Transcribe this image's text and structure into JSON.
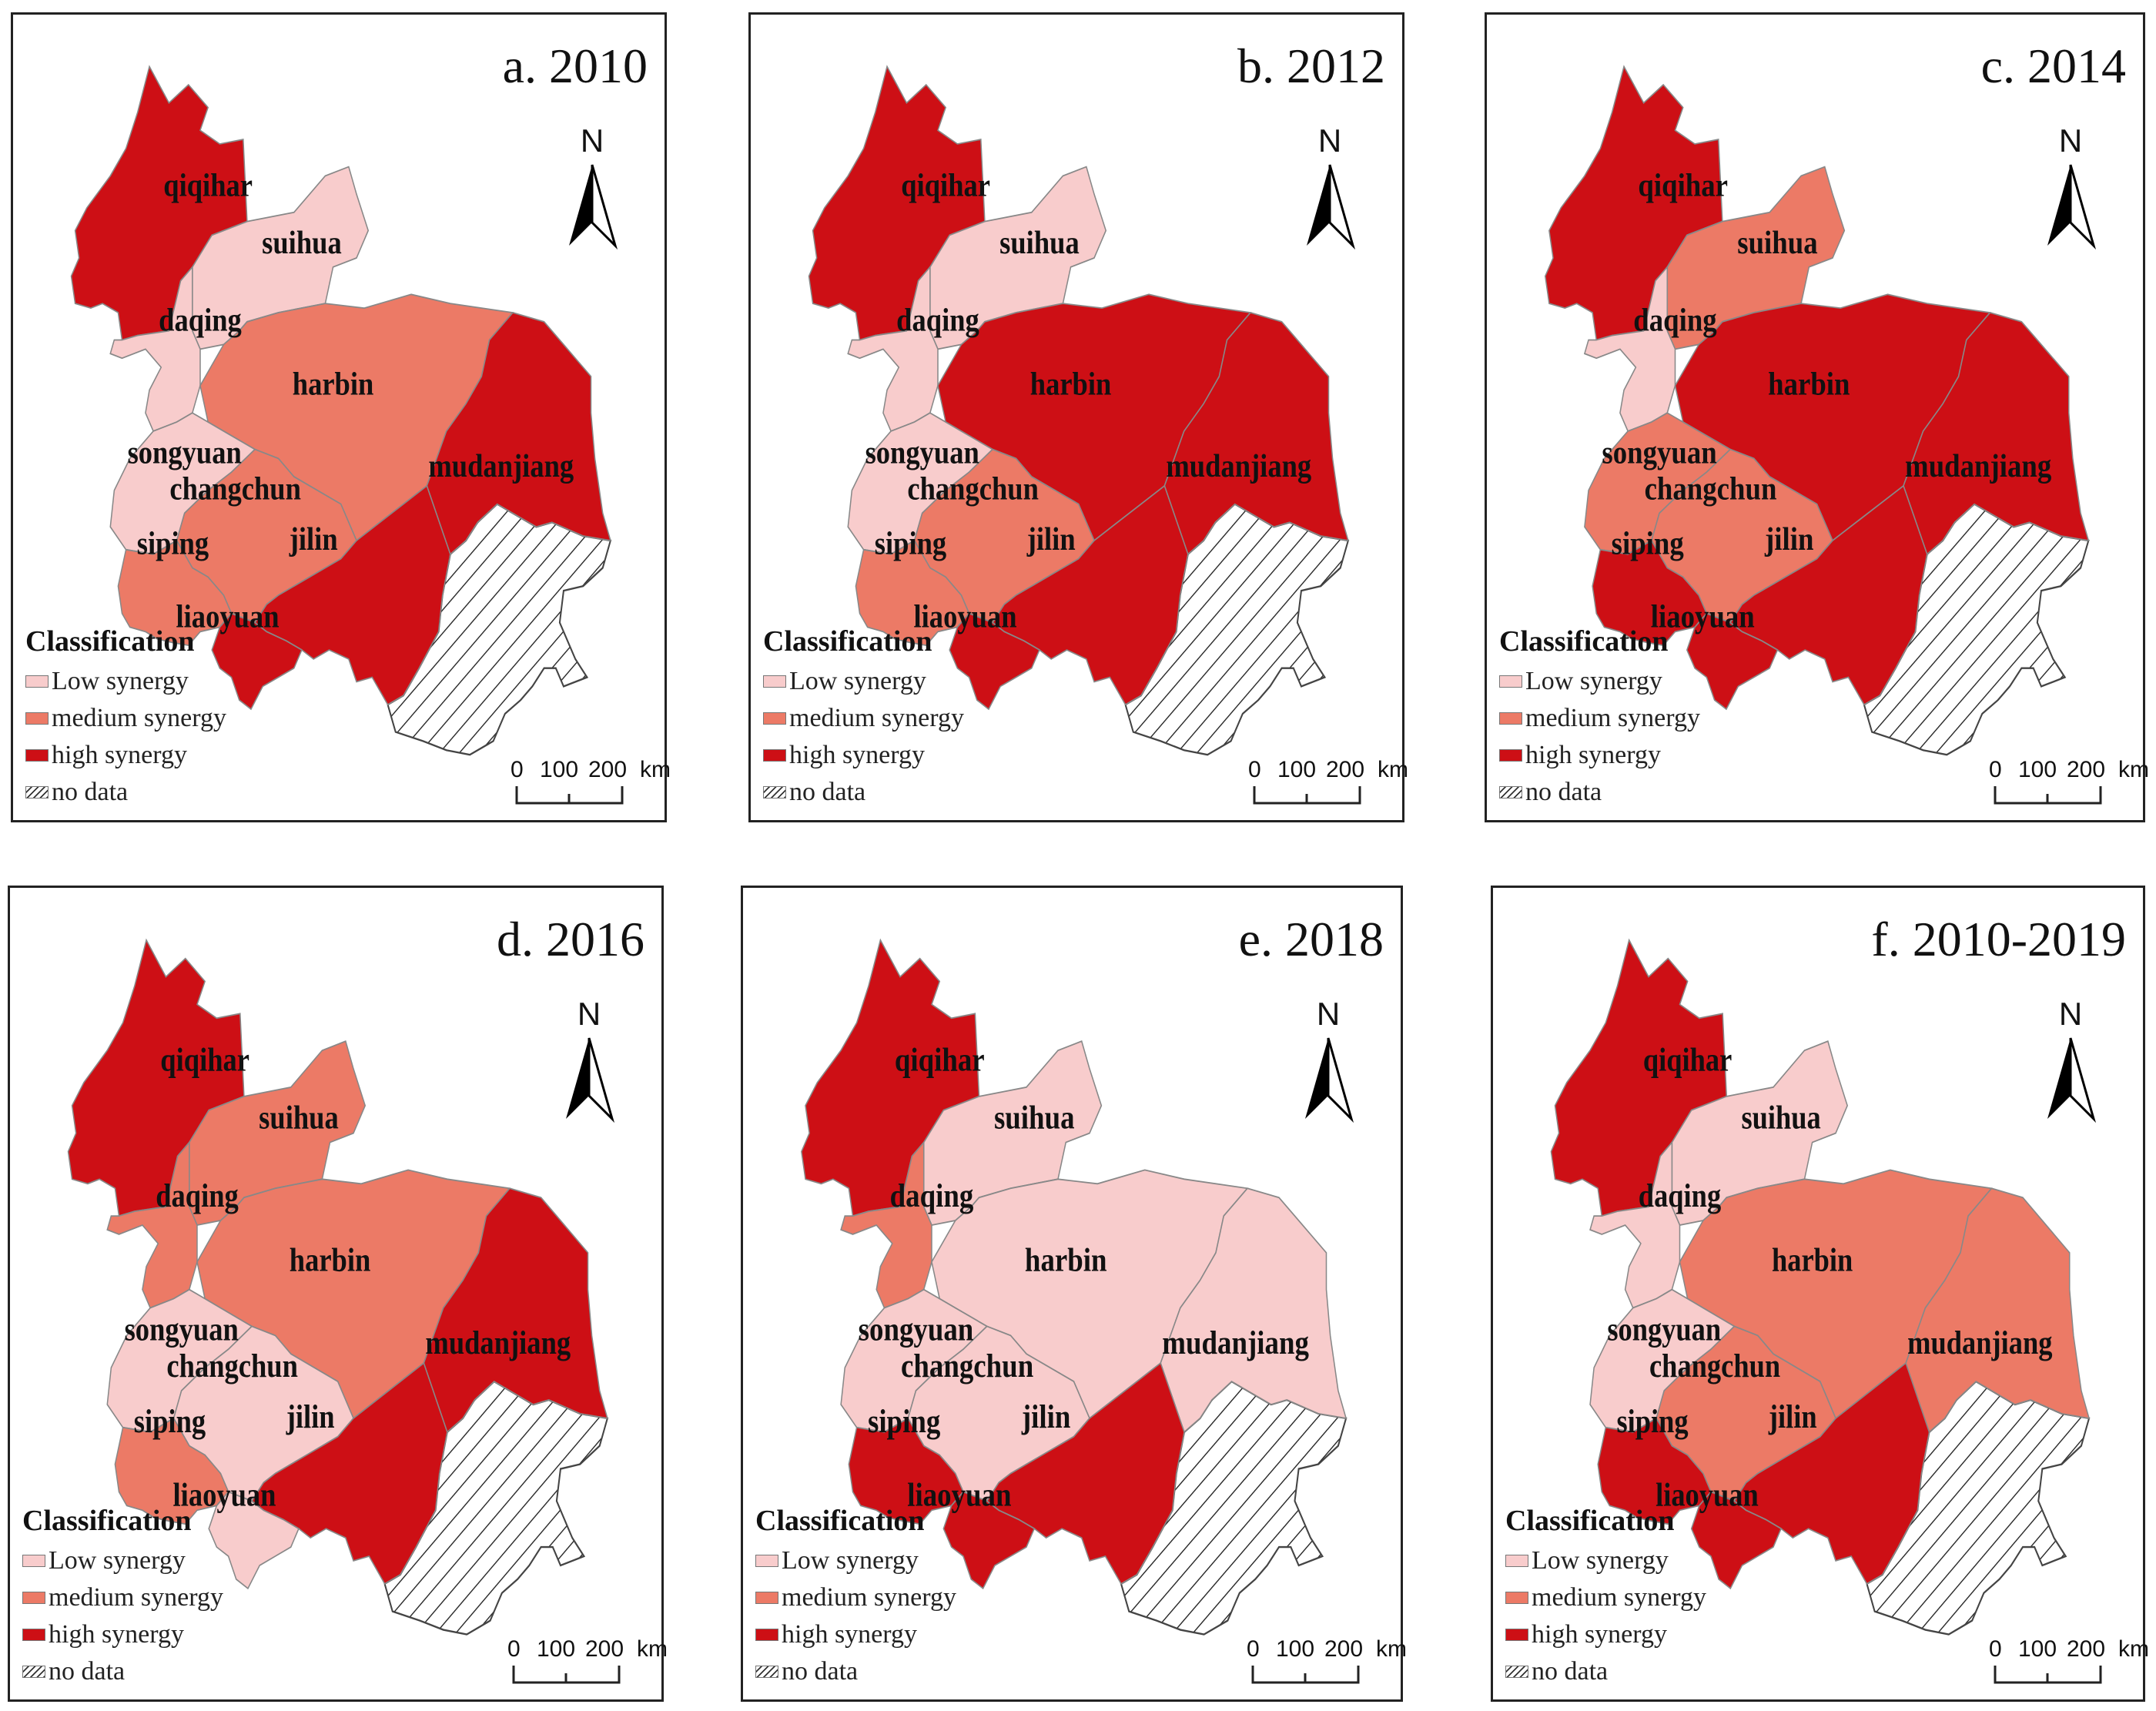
{
  "colors": {
    "low": "#f8cccc",
    "medium": "#ec7a66",
    "high": "#cd0f15",
    "no_data": "hatch",
    "boundary": "#888888"
  },
  "panels": [
    {
      "title": "a. 2010",
      "classes": {
        "qiqihar": "high",
        "suihua": "low",
        "daqing": "low",
        "harbin": "medium",
        "songyuan": "low",
        "changchun": "medium",
        "mudanjiang": "high",
        "siping": "medium",
        "jilin": "high",
        "liaoyuan": "high"
      }
    },
    {
      "title": "b. 2012",
      "classes": {
        "qiqihar": "high",
        "suihua": "low",
        "daqing": "low",
        "harbin": "high",
        "songyuan": "low",
        "changchun": "medium",
        "mudanjiang": "high",
        "siping": "medium",
        "jilin": "high",
        "liaoyuan": "high"
      }
    },
    {
      "title": "c. 2014",
      "classes": {
        "qiqihar": "high",
        "suihua": "medium",
        "daqing": "low",
        "harbin": "high",
        "songyuan": "medium",
        "changchun": "medium",
        "mudanjiang": "high",
        "siping": "high",
        "jilin": "high",
        "liaoyuan": "high"
      }
    },
    {
      "title": "d. 2016",
      "classes": {
        "qiqihar": "high",
        "suihua": "medium",
        "daqing": "medium",
        "harbin": "medium",
        "songyuan": "low",
        "changchun": "low",
        "mudanjiang": "high",
        "siping": "medium",
        "jilin": "high",
        "liaoyuan": "low"
      }
    },
    {
      "title": "e. 2018",
      "classes": {
        "qiqihar": "high",
        "suihua": "low",
        "daqing": "medium",
        "harbin": "low",
        "songyuan": "low",
        "changchun": "low",
        "mudanjiang": "low",
        "siping": "high",
        "jilin": "high",
        "liaoyuan": "high"
      }
    },
    {
      "title": "f. 2010-2019",
      "classes": {
        "qiqihar": "high",
        "suihua": "low",
        "daqing": "low",
        "harbin": "medium",
        "songyuan": "low",
        "changchun": "medium",
        "mudanjiang": "medium",
        "siping": "high",
        "jilin": "high",
        "liaoyuan": "high"
      }
    }
  ],
  "city_labels": {
    "qiqihar": "qiqihar",
    "suihua": "suihua",
    "daqing": "daqing",
    "harbin": "harbin",
    "songyuan": "songyuan",
    "changchun": "changchun",
    "mudanjiang": "mudanjiang",
    "siping": "siping",
    "jilin": "jilin",
    "liaoyuan": "liaoyuan"
  },
  "legend": {
    "title": "Classification",
    "items": [
      "Low synergy",
      "medium synergy",
      "high synergy",
      "no data"
    ]
  },
  "north_label": "N",
  "scale_bar": {
    "ticks": [
      "0",
      "100",
      "200"
    ],
    "unit": "km"
  }
}
